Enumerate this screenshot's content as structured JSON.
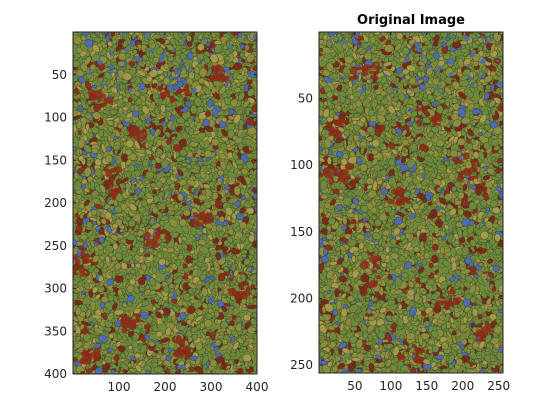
{
  "figure": {
    "background": "#ffffff",
    "texture_colors": [
      "#6e8a3c",
      "#8a8f3e",
      "#a39a4a",
      "#7a2a18",
      "#8c2f1a",
      "#4c6bb0",
      "#2b2a1e"
    ]
  },
  "axes": [
    {
      "title": "",
      "x_ticks": [
        "100",
        "200",
        "300",
        "400"
      ],
      "y_ticks": [
        "50",
        "100",
        "150",
        "200",
        "250",
        "300",
        "350",
        "400"
      ]
    },
    {
      "title": "Original Image",
      "x_ticks": [
        "50",
        "100",
        "150",
        "200",
        "250"
      ],
      "y_ticks": [
        "50",
        "100",
        "150",
        "200",
        "250"
      ]
    }
  ]
}
